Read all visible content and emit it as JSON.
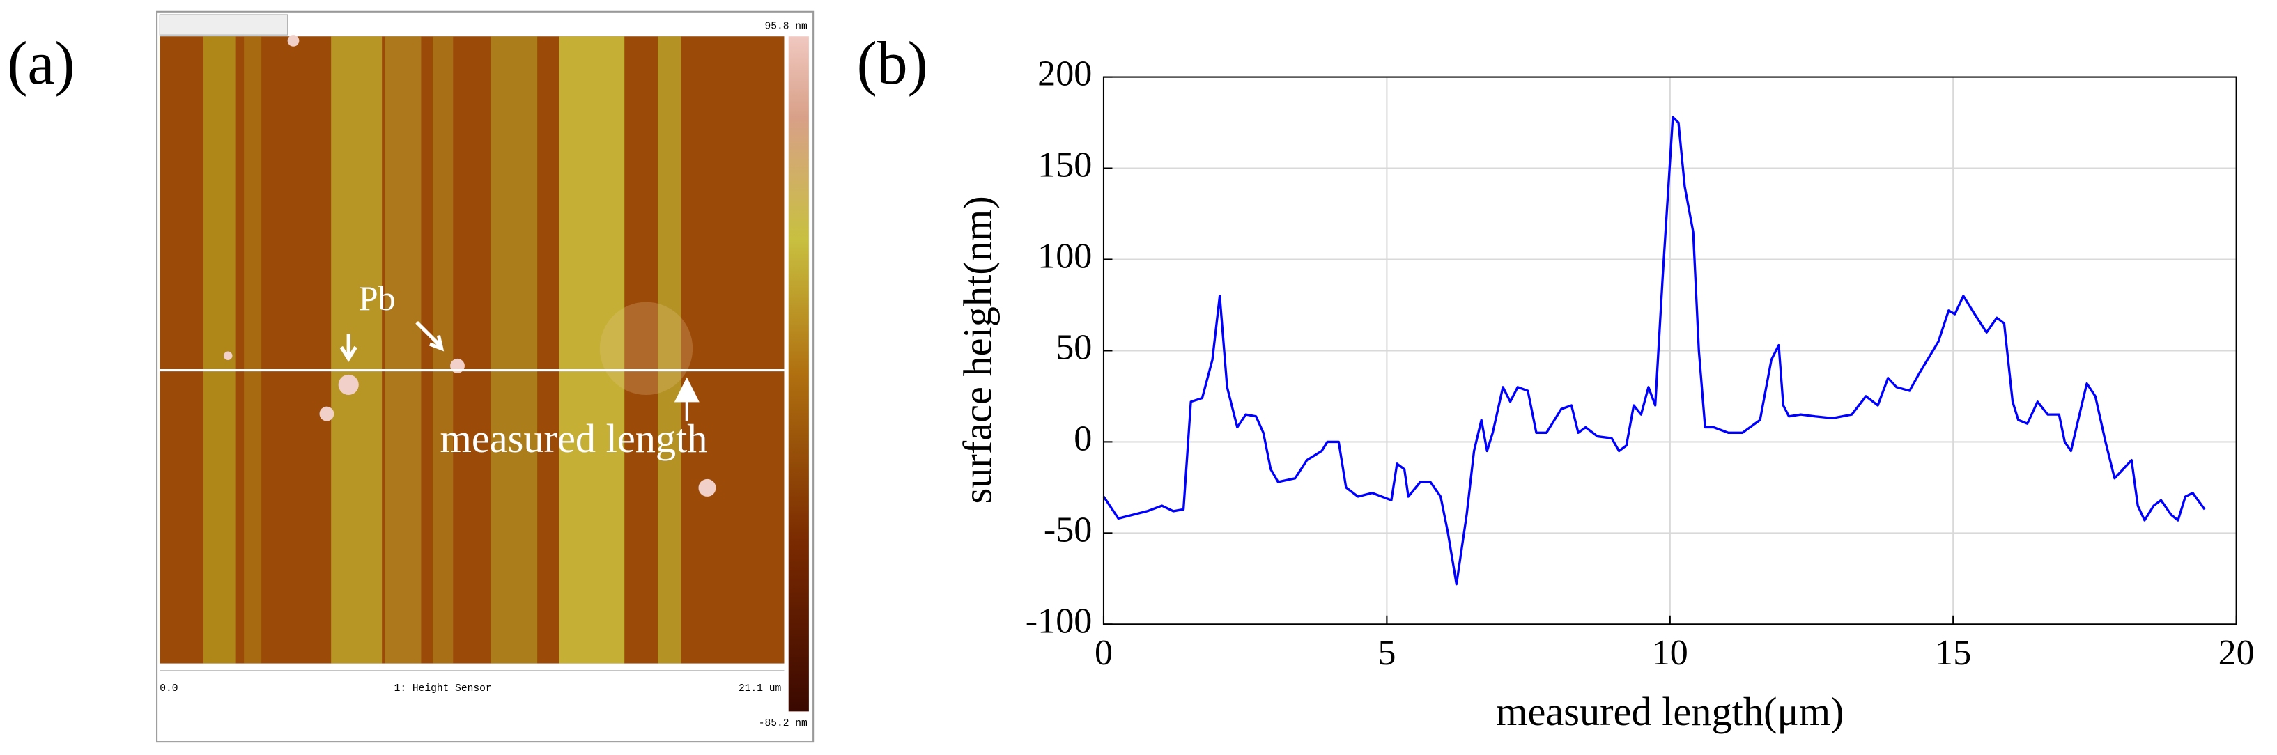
{
  "panel_a": {
    "label": "(a)",
    "annotations": [
      "Pb",
      "measured length"
    ],
    "scale_max": "95.8 nm",
    "scale_min": "-85.2 nm",
    "x_start": "0.0",
    "channel": "1: Height Sensor",
    "x_end": "21.1 um"
  },
  "chart_data": {
    "type": "line",
    "panel_label": "(b)",
    "x_label": "measured length(μm)",
    "y_label": "surface height(nm)",
    "x": [
      0,
      0.26,
      0.77,
      1.03,
      1.23,
      1.41,
      1.54,
      1.74,
      1.92,
      2.05,
      2.18,
      2.36,
      2.51,
      2.69,
      2.82,
      2.95,
      3.08,
      3.38,
      3.59,
      3.85,
      3.95,
      4.15,
      4.28,
      4.49,
      4.74,
      5.08,
      5.18,
      5.31,
      5.38,
      5.59,
      5.77,
      5.95,
      6.08,
      6.23,
      6.41,
      6.54,
      6.67,
      6.77,
      6.87,
      7.05,
      7.18,
      7.31,
      7.49,
      7.64,
      7.82,
      8.08,
      8.26,
      8.38,
      8.51,
      8.72,
      8.97,
      9.1,
      9.23,
      9.36,
      9.49,
      9.62,
      9.74,
      9.87,
      10.05,
      10.15,
      10.26,
      10.41,
      10.51,
      10.62,
      10.77,
      11.03,
      11.28,
      11.59,
      11.79,
      11.92,
      12.0,
      12.1,
      12.31,
      12.56,
      12.87,
      13.21,
      13.46,
      13.67,
      13.85,
      14.0,
      14.23,
      14.41,
      14.74,
      14.92,
      15.03,
      15.18,
      15.38,
      15.59,
      15.77,
      15.9,
      16.05,
      16.15,
      16.31,
      16.49,
      16.67,
      16.87,
      16.97,
      17.08,
      17.23,
      17.36,
      17.51,
      17.69,
      17.85,
      18.0,
      18.15,
      18.26,
      18.38,
      18.54,
      18.67,
      18.85,
      18.97,
      19.1,
      19.23,
      19.44
    ],
    "series": [
      {
        "color": "#0000ff",
        "values": [
          -30,
          -42,
          -38,
          -35,
          -38,
          -37,
          22,
          24,
          45,
          80,
          30,
          8,
          15,
          14,
          5,
          -15,
          -22,
          -20,
          -10,
          -5,
          0,
          0,
          -25,
          -30,
          -28,
          -32,
          -12,
          -15,
          -30,
          -22,
          -22,
          -30,
          -50,
          -78,
          -40,
          -5,
          12,
          -5,
          5,
          30,
          22,
          30,
          28,
          5,
          5,
          18,
          20,
          5,
          8,
          3,
          2,
          -5,
          -2,
          20,
          15,
          30,
          20,
          90,
          178,
          175,
          140,
          115,
          50,
          8,
          8,
          5,
          5,
          12,
          45,
          53,
          20,
          14,
          15,
          14,
          13,
          15,
          25,
          20,
          35,
          30,
          28,
          38,
          55,
          72,
          70,
          80,
          70,
          60,
          68,
          65,
          22,
          12,
          10,
          22,
          15,
          15,
          0,
          -5,
          15,
          32,
          25,
          0,
          -20,
          -15,
          -10,
          -35,
          -43,
          -35,
          -32,
          -40,
          -43,
          -30,
          -28,
          -37
        ]
      }
    ],
    "xlim": [
      0,
      20
    ],
    "xticks": [
      0,
      5,
      10,
      15,
      20
    ],
    "ylim": [
      -100,
      200
    ],
    "yticks": [
      -100,
      -50,
      0,
      50,
      100,
      150,
      200
    ],
    "grid": true
  }
}
